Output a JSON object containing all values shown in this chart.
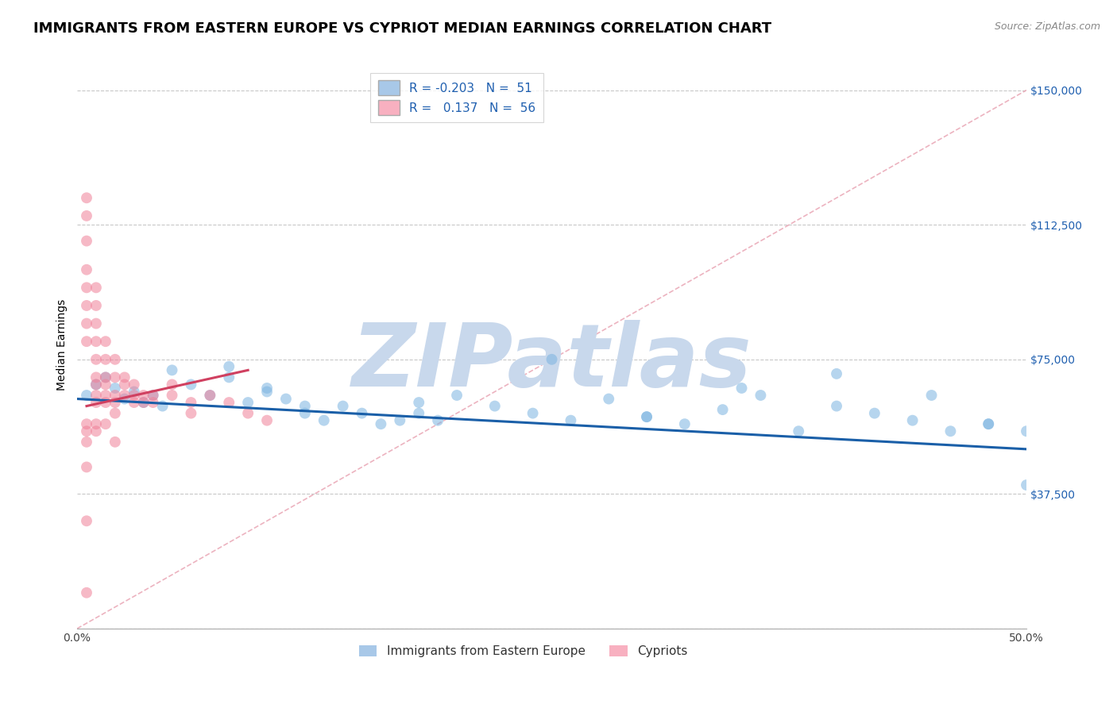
{
  "title": "IMMIGRANTS FROM EASTERN EUROPE VS CYPRIOT MEDIAN EARNINGS CORRELATION CHART",
  "source": "Source: ZipAtlas.com",
  "ylabel": "Median Earnings",
  "legend_label_blue": "Immigrants from Eastern Europe",
  "legend_label_pink": "Cypriots",
  "yticks": [
    0,
    37500,
    75000,
    112500,
    150000
  ],
  "ytick_labels": [
    "",
    "$37,500",
    "$75,000",
    "$112,500",
    "$150,000"
  ],
  "ylim": [
    0,
    158000
  ],
  "xlim": [
    0.0,
    0.5
  ],
  "xtick_positions": [
    0.0,
    0.1,
    0.2,
    0.3,
    0.4,
    0.5
  ],
  "xtick_labels": [
    "0.0%",
    "",
    "",
    "",
    "",
    "50.0%"
  ],
  "blue_scatter_x": [
    0.005,
    0.01,
    0.015,
    0.02,
    0.025,
    0.03,
    0.035,
    0.04,
    0.045,
    0.05,
    0.06,
    0.07,
    0.08,
    0.09,
    0.1,
    0.11,
    0.12,
    0.13,
    0.14,
    0.15,
    0.16,
    0.17,
    0.18,
    0.19,
    0.2,
    0.22,
    0.24,
    0.26,
    0.28,
    0.3,
    0.32,
    0.34,
    0.36,
    0.38,
    0.4,
    0.42,
    0.44,
    0.46,
    0.48,
    0.5,
    0.08,
    0.1,
    0.12,
    0.18,
    0.25,
    0.3,
    0.35,
    0.4,
    0.45,
    0.48,
    0.5
  ],
  "blue_scatter_y": [
    65000,
    68000,
    70000,
    67000,
    64000,
    66000,
    63000,
    65000,
    62000,
    72000,
    68000,
    65000,
    70000,
    63000,
    67000,
    64000,
    60000,
    58000,
    62000,
    60000,
    57000,
    58000,
    63000,
    58000,
    65000,
    62000,
    60000,
    58000,
    64000,
    59000,
    57000,
    61000,
    65000,
    55000,
    62000,
    60000,
    58000,
    55000,
    57000,
    55000,
    73000,
    66000,
    62000,
    60000,
    75000,
    59000,
    67000,
    71000,
    65000,
    57000,
    40000
  ],
  "pink_scatter_x": [
    0.005,
    0.005,
    0.005,
    0.005,
    0.005,
    0.005,
    0.005,
    0.005,
    0.01,
    0.01,
    0.01,
    0.01,
    0.01,
    0.01,
    0.01,
    0.01,
    0.01,
    0.015,
    0.015,
    0.015,
    0.015,
    0.015,
    0.015,
    0.02,
    0.02,
    0.02,
    0.02,
    0.02,
    0.025,
    0.025,
    0.025,
    0.03,
    0.03,
    0.03,
    0.035,
    0.035,
    0.04,
    0.04,
    0.05,
    0.05,
    0.06,
    0.06,
    0.07,
    0.08,
    0.09,
    0.1,
    0.005,
    0.005,
    0.005,
    0.005,
    0.005,
    0.005,
    0.01,
    0.01,
    0.015,
    0.02
  ],
  "pink_scatter_y": [
    120000,
    115000,
    108000,
    100000,
    95000,
    90000,
    85000,
    80000,
    95000,
    90000,
    85000,
    80000,
    75000,
    70000,
    68000,
    65000,
    63000,
    80000,
    75000,
    70000,
    68000,
    65000,
    63000,
    75000,
    70000,
    65000,
    63000,
    60000,
    70000,
    68000,
    65000,
    68000,
    65000,
    63000,
    65000,
    63000,
    65000,
    63000,
    68000,
    65000,
    63000,
    60000,
    65000,
    63000,
    60000,
    58000,
    57000,
    55000,
    52000,
    45000,
    30000,
    10000,
    57000,
    55000,
    57000,
    52000
  ],
  "blue_line_x": [
    0.0,
    0.5
  ],
  "blue_line_y": [
    64000,
    50000
  ],
  "pink_line_x": [
    0.005,
    0.09
  ],
  "pink_line_y": [
    62000,
    72000
  ],
  "ref_line_color": "#e8a0b0",
  "ref_line_x": [
    0.0,
    0.5
  ],
  "ref_line_y": [
    0,
    150000
  ],
  "blue_color": "#7ab3e0",
  "pink_color": "#f08098",
  "blue_line_color": "#1a5fa8",
  "pink_line_color": "#d04060",
  "watermark": "ZIPatlas",
  "watermark_color": "#c8d8ec",
  "background_color": "#ffffff",
  "title_fontsize": 13,
  "axis_label_fontsize": 10,
  "tick_fontsize": 10,
  "source_fontsize": 9,
  "scatter_size": 100,
  "scatter_alpha": 0.55,
  "grid_color": "#c8c8c8",
  "right_ytick_color": "#2060b0",
  "legend_box_color_blue": "#a8c8e8",
  "legend_box_color_pink": "#f8b0c0"
}
